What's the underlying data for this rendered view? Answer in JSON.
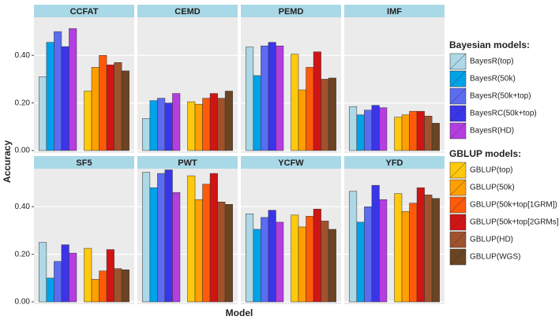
{
  "chart_data": {
    "type": "bar",
    "ylabel": "Accuracy",
    "xlabel": "Model",
    "categories": [
      "CCFAT",
      "CEMD",
      "PEMD",
      "IMF",
      "SF5",
      "PWT",
      "YCFW",
      "YFD"
    ],
    "ylim": [
      -0.01,
      0.56
    ],
    "yticks": [
      {
        "value": 0,
        "label": "0.00"
      },
      {
        "value": 0.2,
        "label": "0.20"
      },
      {
        "value": 0.4,
        "label": "0.40"
      }
    ],
    "grid": true,
    "groups": [
      {
        "title": "Bayesian models:",
        "series": [
          {
            "name": "BayesR(top)",
            "color": "#add8e6",
            "values": [
              0.31,
              0.135,
              0.435,
              0.185,
              0.25,
              0.545,
              0.37,
              0.465
            ]
          },
          {
            "name": "BayesR(50k)",
            "color": "#00a2e8",
            "values": [
              0.455,
              0.21,
              0.315,
              0.15,
              0.1,
              0.48,
              0.305,
              0.335
            ]
          },
          {
            "name": "BayesR(50k+top)",
            "color": "#5b6cf2",
            "values": [
              0.5,
              0.22,
              0.44,
              0.17,
              0.17,
              0.54,
              0.355,
              0.4
            ]
          },
          {
            "name": "BayesRC(50k+top)",
            "color": "#3a35e8",
            "values": [
              0.437,
              0.2,
              0.455,
              0.19,
              0.24,
              0.555,
              0.385,
              0.49
            ]
          },
          {
            "name": "BayesR(HD)",
            "color": "#b43ee0",
            "values": [
              0.513,
              0.24,
              0.44,
              0.18,
              0.205,
              0.46,
              0.335,
              0.43
            ]
          }
        ]
      },
      {
        "title": "GBLUP models:",
        "series": [
          {
            "name": "GBLUP(top)",
            "color": "#ffc90e",
            "values": [
              0.25,
              0.205,
              0.405,
              0.14,
              0.225,
              0.53,
              0.365,
              0.455
            ]
          },
          {
            "name": "GBLUP(50k)",
            "color": "#ff9f00",
            "values": [
              0.35,
              0.195,
              0.255,
              0.15,
              0.095,
              0.43,
              0.315,
              0.38
            ]
          },
          {
            "name": "GBLUP(50k+top[1GRM])",
            "color": "#ff5a0a",
            "values": [
              0.4,
              0.22,
              0.35,
              0.165,
              0.13,
              0.495,
              0.36,
              0.415
            ]
          },
          {
            "name": "GBLUP(50k+top[2GRMs])",
            "color": "#d11414",
            "values": [
              0.36,
              0.24,
              0.415,
              0.165,
              0.22,
              0.54,
              0.39,
              0.48
            ]
          },
          {
            "name": "GBLUP(HD)",
            "color": "#a0522d",
            "values": [
              0.37,
              0.22,
              0.3,
              0.145,
              0.14,
              0.42,
              0.34,
              0.45
            ]
          },
          {
            "name": "GBLUP(WGS)",
            "color": "#6b4423",
            "values": [
              0.335,
              0.25,
              0.305,
              0.115,
              0.135,
              0.41,
              0.305,
              0.435
            ]
          }
        ]
      }
    ]
  }
}
